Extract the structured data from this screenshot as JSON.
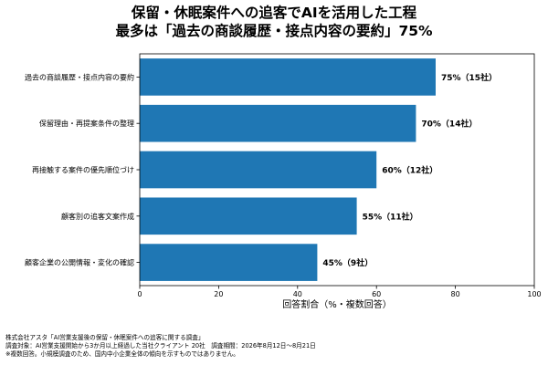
{
  "title_lines": [
    "保留・休眠案件への追客でAIを活用した工程",
    "最多は「過去の商談履歴・接点内容の要約」75%"
  ],
  "footnotes": [
    "株式会社アスタ「AI営業支援後の保留・休眠案件への追客に関する調査」",
    "調査対象：AI営業支援開始から3か月以上経過した当社クライアント 20社　調査期間：2026年8月12日〜8月21日",
    "※複数回答。小規模調査のため、国内中小企業全体の傾向を示すものではありません。"
  ],
  "colors": {
    "bar": "#1f77b4"
  },
  "chart_data": {
    "type": "bar",
    "orientation": "horizontal",
    "categories": [
      "過去の商談履歴・接点内容の要約",
      "保留理由・再提案条件の整理",
      "再接触する案件の優先順位づけ",
      "顧客別の追客文案作成",
      "顧客企業の公開情報・変化の確認"
    ],
    "values": [
      75,
      70,
      60,
      55,
      45
    ],
    "data_labels": [
      "75%（15社）",
      "70%（14社）",
      "60%（12社）",
      "55%（11社）",
      "45%（9社）"
    ],
    "xlabel": "回答割合（%・複数回答）",
    "ylabel": "",
    "xlim": [
      0,
      100
    ],
    "xticks": [
      "0",
      "20",
      "40",
      "60",
      "80",
      "100"
    ],
    "grid": false,
    "legend": "none"
  }
}
